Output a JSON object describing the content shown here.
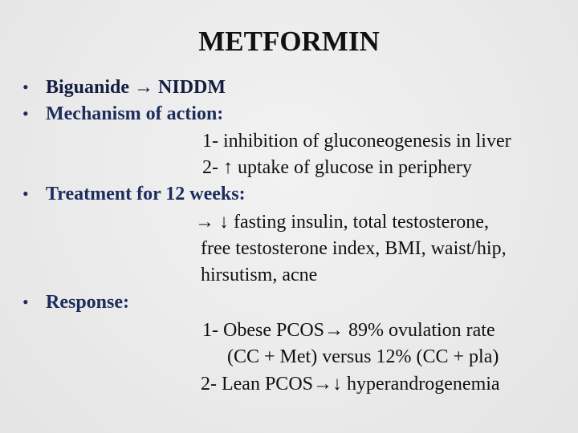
{
  "header": {
    "title": "METFORMIN"
  },
  "bullets": [
    {
      "text": "Biguanide → NIDDM",
      "lines": []
    },
    {
      "text": "Mechanism of action:",
      "lines": [
        "1- inhibition of gluconeogenesis in liver",
        "2- ↑ uptake of glucose in periphery"
      ]
    },
    {
      "text": "Treatment for 12 weeks:",
      "lines": [
        "→ ↓ fasting insulin, total testosterone,",
        "free testosterone index, BMI, waist/hip,",
        "hirsutism, acne"
      ]
    },
    {
      "text": "Response:",
      "lines": [
        "1- Obese PCOS→ 89% ovulation rate",
        "(CC + Met) versus 12% (CC + pla)",
        "2- Lean PCOS→↓ hyperandrogenemia"
      ]
    }
  ]
}
